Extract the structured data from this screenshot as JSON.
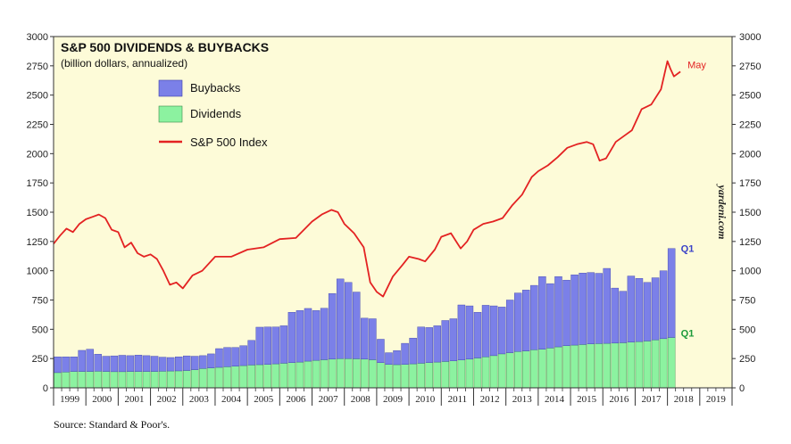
{
  "chart_data": {
    "type": "bar",
    "title": "S&P 500 DIVIDENDS & BUYBACKS",
    "subtitle": "(billion dollars, annualized)",
    "source": "Source: Standard & Poor's.",
    "watermark": "yardeni.com",
    "stacked": true,
    "ylim": [
      0,
      3000
    ],
    "yticks": [
      "0",
      "250",
      "500",
      "750",
      "1000",
      "1250",
      "1500",
      "1750",
      "2000",
      "2250",
      "2500",
      "2750",
      "3000"
    ],
    "xticks": [
      "1999",
      "2000",
      "2001",
      "2002",
      "2003",
      "2004",
      "2005",
      "2006",
      "2007",
      "2008",
      "2009",
      "2010",
      "2011",
      "2012",
      "2013",
      "2014",
      "2015",
      "2016",
      "2017",
      "2018",
      "2019"
    ],
    "x_start": 1999,
    "quarters": [
      "Q1-1999",
      "Q2-1999",
      "Q3-1999",
      "Q4-1999",
      "Q1-2000",
      "Q2-2000",
      "Q3-2000",
      "Q4-2000",
      "Q1-2001",
      "Q2-2001",
      "Q3-2001",
      "Q4-2001",
      "Q1-2002",
      "Q2-2002",
      "Q3-2002",
      "Q4-2002",
      "Q1-2003",
      "Q2-2003",
      "Q3-2003",
      "Q4-2003",
      "Q1-2004",
      "Q2-2004",
      "Q3-2004",
      "Q4-2004",
      "Q1-2005",
      "Q2-2005",
      "Q3-2005",
      "Q4-2005",
      "Q1-2006",
      "Q2-2006",
      "Q3-2006",
      "Q4-2006",
      "Q1-2007",
      "Q2-2007",
      "Q3-2007",
      "Q4-2007",
      "Q1-2008",
      "Q2-2008",
      "Q3-2008",
      "Q4-2008",
      "Q1-2009",
      "Q2-2009",
      "Q3-2009",
      "Q4-2009",
      "Q1-2010",
      "Q2-2010",
      "Q3-2010",
      "Q4-2010",
      "Q1-2011",
      "Q2-2011",
      "Q3-2011",
      "Q4-2011",
      "Q1-2012",
      "Q2-2012",
      "Q3-2012",
      "Q4-2012",
      "Q1-2013",
      "Q2-2013",
      "Q3-2013",
      "Q4-2013",
      "Q1-2014",
      "Q2-2014",
      "Q3-2014",
      "Q4-2014",
      "Q1-2015",
      "Q2-2015",
      "Q3-2015",
      "Q4-2015",
      "Q1-2016",
      "Q2-2016",
      "Q3-2016",
      "Q4-2016",
      "Q1-2017",
      "Q2-2017",
      "Q3-2017",
      "Q4-2017",
      "Q1-2018"
    ],
    "series": [
      {
        "name": "Dividends",
        "color": "#8cf2a0",
        "values": [
          130,
          135,
          140,
          140,
          140,
          142,
          140,
          138,
          138,
          140,
          140,
          140,
          140,
          142,
          144,
          145,
          148,
          155,
          165,
          170,
          175,
          180,
          185,
          190,
          195,
          198,
          200,
          205,
          210,
          215,
          220,
          228,
          235,
          240,
          245,
          250,
          250,
          248,
          245,
          240,
          215,
          200,
          198,
          200,
          205,
          210,
          215,
          220,
          225,
          230,
          238,
          245,
          255,
          265,
          275,
          290,
          300,
          310,
          315,
          325,
          330,
          340,
          350,
          360,
          365,
          370,
          375,
          378,
          380,
          382,
          385,
          390,
          395,
          400,
          410,
          420,
          430
        ]
      },
      {
        "name": "Buybacks",
        "color": "#7b80e8",
        "values": [
          135,
          130,
          125,
          180,
          190,
          145,
          130,
          135,
          140,
          135,
          140,
          135,
          130,
          120,
          115,
          120,
          125,
          115,
          110,
          120,
          160,
          165,
          160,
          170,
          210,
          320,
          320,
          315,
          320,
          430,
          440,
          450,
          425,
          440,
          560,
          680,
          650,
          570,
          350,
          350,
          200,
          100,
          120,
          180,
          220,
          310,
          300,
          310,
          350,
          360,
          470,
          455,
          390,
          440,
          425,
          400,
          450,
          500,
          520,
          550,
          620,
          550,
          600,
          560,
          600,
          610,
          610,
          600,
          640,
          470,
          440,
          565,
          540,
          500,
          530,
          580,
          760
        ]
      }
    ],
    "line_series": {
      "name": "S&P 500 Index",
      "color": "#e32222",
      "x": [
        1999.0,
        1999.2,
        1999.4,
        1999.6,
        1999.8,
        2000.0,
        2000.2,
        2000.4,
        2000.6,
        2000.8,
        2001.0,
        2001.2,
        2001.4,
        2001.6,
        2001.8,
        2002.0,
        2002.2,
        2002.4,
        2002.6,
        2002.8,
        2003.0,
        2003.3,
        2003.6,
        2004.0,
        2004.5,
        2005.0,
        2005.5,
        2006.0,
        2006.5,
        2007.0,
        2007.3,
        2007.6,
        2007.8,
        2008.0,
        2008.3,
        2008.6,
        2008.8,
        2009.0,
        2009.2,
        2009.5,
        2009.8,
        2010.0,
        2010.3,
        2010.5,
        2010.8,
        2011.0,
        2011.3,
        2011.6,
        2011.8,
        2012.0,
        2012.3,
        2012.6,
        2012.9,
        2013.2,
        2013.5,
        2013.8,
        2014.0,
        2014.3,
        2014.6,
        2014.9,
        2015.2,
        2015.5,
        2015.7,
        2015.9,
        2016.1,
        2016.4,
        2016.7,
        2016.9,
        2017.2,
        2017.5,
        2017.8,
        2018.0,
        2018.1,
        2018.2,
        2018.4
      ],
      "y": [
        1230,
        1300,
        1360,
        1330,
        1400,
        1440,
        1460,
        1480,
        1450,
        1350,
        1330,
        1200,
        1240,
        1150,
        1120,
        1140,
        1100,
        1000,
        880,
        900,
        850,
        960,
        1000,
        1120,
        1120,
        1180,
        1200,
        1270,
        1280,
        1420,
        1480,
        1520,
        1500,
        1400,
        1320,
        1200,
        900,
        820,
        780,
        950,
        1050,
        1120,
        1100,
        1080,
        1180,
        1290,
        1320,
        1190,
        1250,
        1350,
        1400,
        1420,
        1450,
        1560,
        1650,
        1800,
        1850,
        1900,
        1970,
        2050,
        2080,
        2100,
        2080,
        1940,
        1960,
        2100,
        2160,
        2200,
        2380,
        2420,
        2550,
        2790,
        2720,
        2660,
        2700
      ]
    },
    "annotations": [
      {
        "text": "May",
        "color": "#e32222"
      },
      {
        "text": "Q1",
        "color": "#3a42c8"
      },
      {
        "text": "Q1",
        "color": "#1b9a3a"
      }
    ]
  }
}
